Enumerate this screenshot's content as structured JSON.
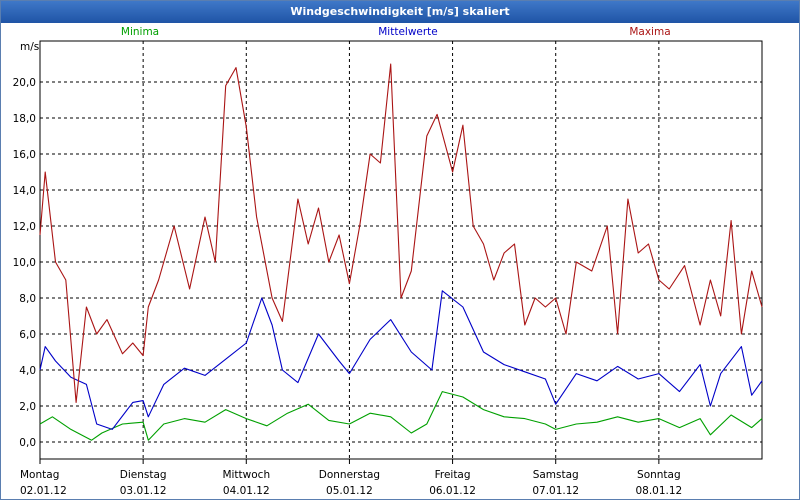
{
  "window": {
    "title": "Windgeschwindigkeit [m/s] skaliert"
  },
  "chart_data": {
    "type": "line",
    "title": "Windgeschwindigkeit [m/s] skaliert",
    "ylabel": "m/s",
    "ylim": [
      -1,
      22
    ],
    "yticks": [
      0,
      2,
      4,
      6,
      8,
      10,
      12,
      14,
      16,
      18,
      20
    ],
    "ytick_labels": [
      "0,0",
      "2,0",
      "4,0",
      "6,0",
      "8,0",
      "10,0",
      "12,0",
      "14,0",
      "16,0",
      "18,0",
      "20,0"
    ],
    "xlim": [
      0,
      7
    ],
    "x_ticks": [
      {
        "day": "Montag",
        "date": "02.01.12"
      },
      {
        "day": "Dienstag",
        "date": "03.01.12"
      },
      {
        "day": "Mittwoch",
        "date": "04.01.12"
      },
      {
        "day": "Donnerstag",
        "date": "05.01.12"
      },
      {
        "day": "Freitag",
        "date": "06.01.12"
      },
      {
        "day": "Samstag",
        "date": "07.01.12"
      },
      {
        "day": "Sonntag",
        "date": "08.01.12"
      }
    ],
    "grid": true,
    "series": [
      {
        "name": "Minima",
        "color": "#00a000",
        "x": [
          0,
          0.12,
          0.3,
          0.5,
          0.6,
          0.8,
          1.0,
          1.05,
          1.2,
          1.4,
          1.6,
          1.8,
          2.0,
          2.2,
          2.4,
          2.6,
          2.8,
          3.0,
          3.2,
          3.4,
          3.6,
          3.75,
          3.9,
          4.1,
          4.3,
          4.5,
          4.7,
          4.9,
          5.0,
          5.2,
          5.4,
          5.6,
          5.8,
          6.0,
          6.2,
          6.4,
          6.5,
          6.7,
          6.9,
          7.0
        ],
        "values": [
          1.0,
          1.4,
          0.7,
          0.1,
          0.5,
          1.0,
          1.1,
          0.1,
          1.0,
          1.3,
          1.1,
          1.8,
          1.3,
          0.9,
          1.6,
          2.1,
          1.2,
          1.0,
          1.6,
          1.4,
          0.5,
          1.0,
          2.8,
          2.5,
          1.8,
          1.4,
          1.3,
          1.0,
          0.7,
          1.0,
          1.1,
          1.4,
          1.1,
          1.3,
          0.8,
          1.3,
          0.4,
          1.5,
          0.8,
          1.3
        ]
      },
      {
        "name": "Mittelwerte",
        "color": "#0000c8",
        "x": [
          0,
          0.05,
          0.15,
          0.3,
          0.45,
          0.55,
          0.7,
          0.9,
          1.0,
          1.05,
          1.2,
          1.4,
          1.6,
          1.8,
          2.0,
          2.15,
          2.25,
          2.35,
          2.5,
          2.7,
          2.9,
          3.0,
          3.2,
          3.4,
          3.6,
          3.8,
          3.9,
          4.1,
          4.3,
          4.5,
          4.7,
          4.9,
          5.0,
          5.2,
          5.4,
          5.6,
          5.8,
          6.0,
          6.2,
          6.4,
          6.5,
          6.6,
          6.8,
          6.9,
          7.0
        ],
        "values": [
          4.0,
          5.3,
          4.5,
          3.6,
          3.2,
          1.0,
          0.7,
          2.2,
          2.3,
          1.4,
          3.2,
          4.1,
          3.7,
          4.6,
          5.5,
          8.0,
          6.5,
          4.0,
          3.3,
          6.0,
          4.5,
          3.8,
          5.7,
          6.8,
          5.0,
          4.0,
          8.4,
          7.5,
          5.0,
          4.3,
          3.9,
          3.5,
          2.1,
          3.8,
          3.4,
          4.2,
          3.5,
          3.8,
          2.8,
          4.3,
          2.0,
          3.8,
          5.3,
          2.6,
          3.4
        ]
      },
      {
        "name": "Maxima",
        "color": "#aa1414",
        "x": [
          0,
          0.05,
          0.15,
          0.25,
          0.35,
          0.45,
          0.55,
          0.65,
          0.8,
          0.9,
          1.0,
          1.05,
          1.15,
          1.3,
          1.45,
          1.6,
          1.7,
          1.8,
          1.9,
          2.0,
          2.1,
          2.15,
          2.25,
          2.35,
          2.5,
          2.6,
          2.7,
          2.8,
          2.9,
          3.0,
          3.1,
          3.2,
          3.3,
          3.4,
          3.5,
          3.6,
          3.75,
          3.85,
          4.0,
          4.1,
          4.2,
          4.3,
          4.4,
          4.5,
          4.6,
          4.7,
          4.8,
          4.9,
          5.0,
          5.1,
          5.2,
          5.35,
          5.5,
          5.6,
          5.7,
          5.8,
          5.9,
          6.0,
          6.1,
          6.25,
          6.4,
          6.5,
          6.6,
          6.7,
          6.8,
          6.9,
          7.0
        ],
        "values": [
          11.5,
          15.0,
          10.0,
          9.0,
          2.2,
          7.5,
          6.0,
          6.8,
          4.9,
          5.5,
          4.8,
          7.5,
          9.0,
          12.0,
          8.5,
          12.5,
          10.0,
          19.8,
          20.8,
          17.5,
          12.5,
          11.0,
          8.0,
          6.7,
          13.5,
          11.0,
          13.0,
          10.0,
          11.5,
          8.8,
          12.0,
          16.0,
          15.5,
          21.0,
          8.0,
          9.5,
          17.0,
          18.2,
          15.0,
          17.6,
          12.0,
          11.0,
          9.0,
          10.5,
          11.0,
          6.5,
          8.0,
          7.5,
          8.0,
          6.0,
          10.0,
          9.5,
          12.0,
          6.0,
          13.5,
          10.5,
          11.0,
          9.0,
          8.5,
          9.8,
          6.5,
          9.0,
          7.0,
          12.3,
          6.0,
          9.5,
          7.5
        ]
      }
    ]
  }
}
